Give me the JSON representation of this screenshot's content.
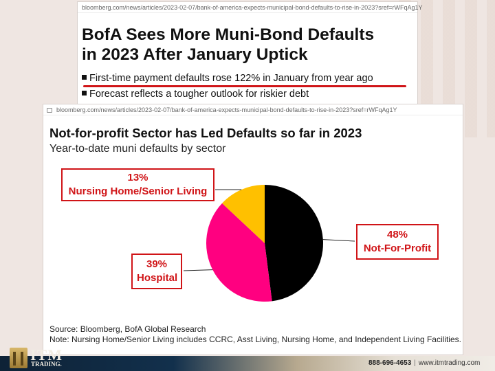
{
  "top_article": {
    "url": "bloomberg.com/news/articles/2023-02-07/bank-of-america-expects-municipal-bond-defaults-to-rise-in-2023?sref=rWFqAg1Y",
    "headline_line1": "BofA Sees More Muni-Bond Defaults",
    "headline_line2": "in 2023 After January Uptick",
    "bullet1": "First-time payment defaults rose 122% in January from year ago",
    "bullet2": "Forecast reflects a tougher outlook for riskier debt"
  },
  "main_article": {
    "url": "bloomberg.com/news/articles/2023-02-07/bank-of-america-expects-municipal-bond-defaults-to-rise-in-2023?sref=rWFqAg1Y",
    "source": "Source: Bloomberg, BofA Global Research",
    "note": "Note: Nursing Home/Senior Living includes CCRC, Asst Living, Nursing Home, and Independent Living Facilities."
  },
  "chart_data": {
    "type": "pie",
    "title": "Not-for-profit Sector has Led Defaults so far in 2023",
    "subtitle": "Year-to-date muni defaults by sector",
    "slices": [
      {
        "label": "Not-For-Profit",
        "value": 48,
        "display": "48%",
        "color": "#000000"
      },
      {
        "label": "Hospital",
        "value": 39,
        "display": "39%",
        "color": "#ff0080"
      },
      {
        "label": "Nursing Home/Senior Living",
        "value": 13,
        "display": "13%",
        "color": "#ffc000"
      }
    ]
  },
  "callouts": {
    "nursing_pct": "13%",
    "nursing_label": "Nursing Home/Senior Living",
    "nfp_pct": "48%",
    "nfp_label": "Not-For-Profit",
    "hosp_pct": "39%",
    "hosp_label": "Hospital"
  },
  "branding": {
    "logo_text": "ITM",
    "logo_subtext": "TRADING.",
    "phone": "888-696-4653",
    "separator": "|",
    "website": "www.itmtrading.com"
  },
  "colors": {
    "accent_red": "#d01417",
    "bar_dark": "#0e2236"
  }
}
